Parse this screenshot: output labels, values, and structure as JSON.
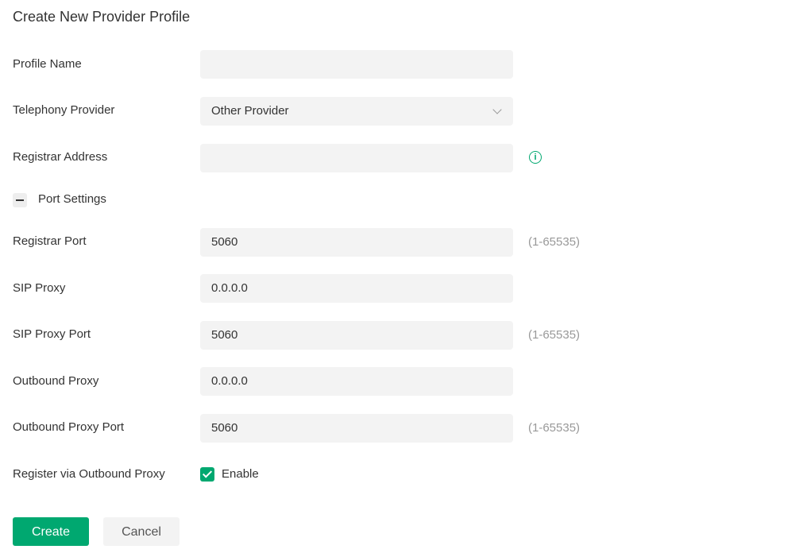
{
  "title": "Create New Provider Profile",
  "fields": {
    "profile_name": {
      "label": "Profile Name",
      "value": ""
    },
    "telephony_provider": {
      "label": "Telephony Provider",
      "value": "Other Provider"
    },
    "registrar_address": {
      "label": "Registrar Address",
      "value": ""
    },
    "registrar_port": {
      "label": "Registrar Port",
      "value": "5060",
      "hint": "(1-65535)"
    },
    "sip_proxy": {
      "label": "SIP Proxy",
      "value": "0.0.0.0"
    },
    "sip_proxy_port": {
      "label": "SIP Proxy Port",
      "value": "5060",
      "hint": "(1-65535)"
    },
    "outbound_proxy": {
      "label": "Outbound Proxy",
      "value": "0.0.0.0"
    },
    "outbound_proxy_port": {
      "label": "Outbound Proxy Port",
      "value": "5060",
      "hint": "(1-65535)"
    },
    "register_via_outbound": {
      "label": "Register via Outbound Proxy",
      "option": "Enable",
      "checked": true
    }
  },
  "section": {
    "port_settings": "Port Settings",
    "expanded": true
  },
  "buttons": {
    "create": "Create",
    "cancel": "Cancel"
  },
  "colors": {
    "accent": "#00a870",
    "input_bg": "#f3f3f3"
  },
  "icons": {
    "info": "info-circle-icon",
    "dropdown": "chevron-down-icon",
    "collapse": "minus-icon",
    "check": "check-icon"
  }
}
